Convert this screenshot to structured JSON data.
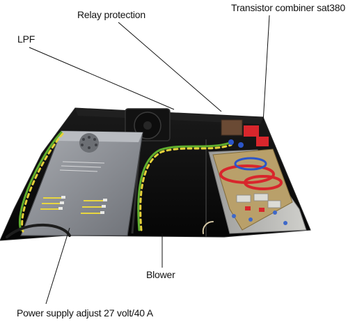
{
  "labels": {
    "relay_protection": "Relay protection",
    "transistor_combiner": "Transistor combiner sat380",
    "lpf": "LPF",
    "blower": "Blower",
    "power_supply": "Power supply adjust 27 volt/40 A"
  },
  "colors": {
    "chassis": "#0b0b0b",
    "psu_metal": "#8f9298",
    "board": "#b9a06a",
    "coil_red": "#d8262c",
    "coil_blue": "#2b55c8",
    "wire_green": "#5fae2e",
    "wire_yellow": "#e6d23a",
    "leader_line": "#111111"
  }
}
